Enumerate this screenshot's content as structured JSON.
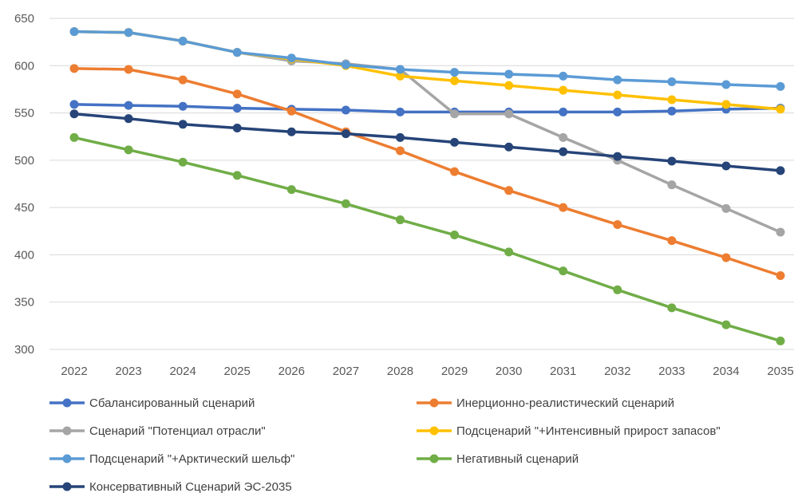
{
  "chart_data": {
    "type": "line",
    "title": "",
    "xlabel": "",
    "ylabel": "",
    "x": [
      "2022",
      "2023",
      "2024",
      "2025",
      "2026",
      "2027",
      "2028",
      "2029",
      "2030",
      "2031",
      "2032",
      "2033",
      "2034",
      "2035"
    ],
    "ylim": [
      300,
      650
    ],
    "yticks": [
      300,
      350,
      400,
      450,
      500,
      550,
      600,
      650
    ],
    "grid": "horizontal",
    "legend_position": "bottom",
    "series": [
      {
        "name": "Сбалансированный сценарий",
        "color": "#4472c4",
        "values": [
          559,
          558,
          557,
          555,
          554,
          553,
          551,
          551,
          551,
          551,
          551,
          552,
          554,
          555
        ]
      },
      {
        "name": "Инерционно-реалистический сценарий",
        "color": "#ed7d31",
        "values": [
          597,
          596,
          585,
          570,
          552,
          530,
          510,
          488,
          468,
          450,
          432,
          415,
          397,
          378
        ]
      },
      {
        "name": "Сценарий \"Потенциал отрасли\"",
        "color": "#a5a5a5",
        "values": [
          636,
          635,
          626,
          614,
          605,
          602,
          596,
          549,
          549,
          524,
          500,
          474,
          449,
          424
        ]
      },
      {
        "name": "Подсценарий \"+Интенсивный прирост запасов\"",
        "color": "#ffc000",
        "values": [
          636,
          635,
          626,
          614,
          607,
          600,
          589,
          584,
          579,
          574,
          569,
          564,
          559,
          554
        ]
      },
      {
        "name": "Подсценарий \"+Арктический шельф\"",
        "color": "#5b9bd5",
        "values": [
          636,
          635,
          626,
          614,
          608,
          601,
          596,
          593,
          591,
          589,
          585,
          583,
          580,
          578
        ]
      },
      {
        "name": "Негативный сценарий",
        "color": "#70ad47",
        "values": [
          524,
          511,
          498,
          484,
          469,
          454,
          437,
          421,
          403,
          383,
          363,
          344,
          326,
          309
        ]
      },
      {
        "name": "Консервативный Сценарий ЭС-2035",
        "color": "#264478",
        "values": [
          549,
          544,
          538,
          534,
          530,
          528,
          524,
          519,
          514,
          509,
          504,
          499,
          494,
          489
        ]
      }
    ]
  }
}
